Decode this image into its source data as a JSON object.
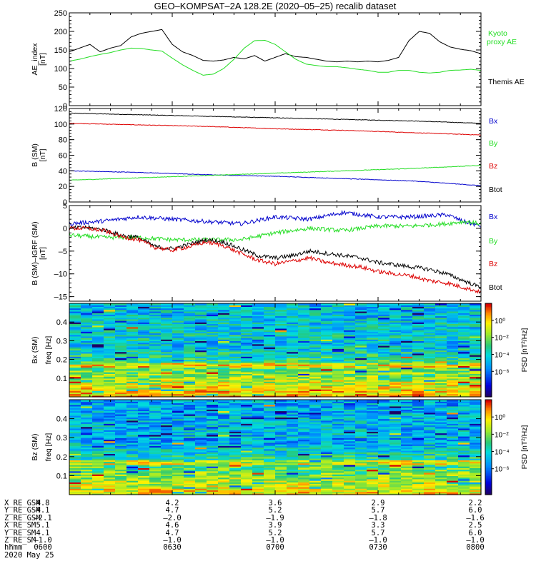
{
  "title": "GEO–KOMPSAT–2A 128.2E (2020–05–25) recalib dataset",
  "colors": {
    "black": "#000000",
    "green": "#22dd22",
    "blue": "#0000cc",
    "red": "#dd0000"
  },
  "chart_data": [
    {
      "type": "line",
      "panel": "ae",
      "ylabel": "AE_index",
      "yunit": "[nT]",
      "ylim": [
        0,
        250
      ],
      "yticks": [
        0,
        50,
        100,
        150,
        200,
        250
      ],
      "xlim": [
        0,
        120
      ],
      "legend": [
        "Kyoto",
        "proxy AE",
        "Themis AE"
      ],
      "series": [
        {
          "name": "Themis AE",
          "color": "#000000",
          "x": [
            0,
            3,
            6,
            9,
            12,
            15,
            18,
            21,
            24,
            27,
            30,
            33,
            36,
            39,
            42,
            45,
            48,
            51,
            54,
            57,
            60,
            63,
            66,
            69,
            72,
            75,
            78,
            81,
            84,
            87,
            90,
            93,
            96,
            99,
            102,
            105,
            108,
            111,
            114,
            117,
            120
          ],
          "y": [
            145,
            155,
            165,
            145,
            155,
            162,
            185,
            195,
            200,
            205,
            165,
            145,
            135,
            122,
            120,
            123,
            130,
            126,
            135,
            120,
            130,
            140,
            132,
            130,
            125,
            120,
            118,
            120,
            118,
            120,
            118,
            122,
            130,
            175,
            200,
            195,
            172,
            158,
            152,
            148,
            140
          ]
        },
        {
          "name": "Kyoto proxy AE",
          "color": "#22dd22",
          "x": [
            0,
            3,
            6,
            9,
            12,
            15,
            18,
            21,
            24,
            27,
            30,
            33,
            36,
            39,
            42,
            45,
            48,
            51,
            54,
            57,
            60,
            63,
            66,
            69,
            72,
            75,
            78,
            81,
            84,
            87,
            90,
            93,
            96,
            99,
            102,
            105,
            108,
            111,
            114,
            117,
            120
          ],
          "y": [
            120,
            125,
            132,
            138,
            143,
            150,
            155,
            154,
            150,
            147,
            128,
            110,
            95,
            82,
            85,
            100,
            125,
            155,
            175,
            176,
            165,
            145,
            125,
            112,
            108,
            105,
            105,
            102,
            98,
            95,
            90,
            90,
            95,
            95,
            90,
            88,
            90,
            95,
            96,
            98,
            95
          ]
        }
      ]
    },
    {
      "type": "line",
      "panel": "b_sm",
      "ylabel": "B (SM)",
      "yunit": "[nT]",
      "ylim": [
        0,
        120
      ],
      "yticks": [
        0,
        20,
        40,
        60,
        80,
        100,
        120
      ],
      "xlim": [
        0,
        120
      ],
      "legend": [
        "Bx",
        "By",
        "Bz",
        "Btot"
      ],
      "series": [
        {
          "name": "Btot",
          "color": "#000000",
          "x": [
            0,
            20,
            40,
            60,
            80,
            100,
            120
          ],
          "y": [
            114,
            112,
            110,
            108,
            106,
            104,
            101
          ]
        },
        {
          "name": "Bz",
          "color": "#dd0000",
          "x": [
            0,
            20,
            40,
            60,
            80,
            100,
            120
          ],
          "y": [
            101,
            99,
            97,
            94,
            92,
            89,
            86
          ]
        },
        {
          "name": "Bx",
          "color": "#0000cc",
          "x": [
            0,
            20,
            40,
            60,
            80,
            100,
            120
          ],
          "y": [
            40,
            38,
            35,
            33,
            30,
            27,
            21
          ]
        },
        {
          "name": "By",
          "color": "#22dd22",
          "x": [
            0,
            20,
            40,
            60,
            80,
            100,
            120
          ],
          "y": [
            28,
            31,
            34,
            37,
            40,
            43,
            47
          ]
        }
      ]
    },
    {
      "type": "line",
      "panel": "b_igrf",
      "ylabel": "B (SM)–IGRF (SM)",
      "yunit": "[nT]",
      "ylim": [
        -16,
        5
      ],
      "yticks": [
        -15,
        -10,
        -5,
        0,
        5
      ],
      "xlim": [
        0,
        120
      ],
      "legend": [
        "Bx",
        "By",
        "Bz",
        "Btot"
      ],
      "series": [
        {
          "name": "Bx",
          "color": "#0000cc",
          "x": [
            0,
            10,
            20,
            30,
            40,
            50,
            60,
            70,
            80,
            90,
            100,
            110,
            115,
            120
          ],
          "y": [
            1.0,
            1.6,
            2.5,
            2.0,
            1.5,
            1.0,
            2.5,
            2.0,
            3.5,
            2.5,
            2.5,
            3.0,
            1.5,
            0.5
          ]
        },
        {
          "name": "By",
          "color": "#22dd22",
          "x": [
            0,
            10,
            20,
            30,
            40,
            50,
            60,
            70,
            80,
            90,
            100,
            110,
            115,
            120
          ],
          "y": [
            -1.5,
            -2.0,
            -2.0,
            -2.5,
            -2.5,
            -2.5,
            -1.0,
            0.0,
            -0.5,
            0.5,
            0.5,
            1.0,
            1.5,
            1.0
          ]
        },
        {
          "name": "Btot",
          "color": "#000000",
          "x": [
            0,
            5,
            10,
            15,
            20,
            25,
            30,
            35,
            40,
            45,
            50,
            55,
            60,
            65,
            70,
            75,
            80,
            85,
            90,
            95,
            100,
            105,
            110,
            115,
            120
          ],
          "y": [
            0,
            0.2,
            -0.3,
            -1.5,
            -2.0,
            -4.0,
            -4.5,
            -3.5,
            -2.5,
            -3.0,
            -4.5,
            -6.0,
            -6.5,
            -6.0,
            -5.0,
            -5.5,
            -6.0,
            -6.5,
            -7.5,
            -8.0,
            -8.5,
            -9.0,
            -10.0,
            -11.5,
            -13.0
          ]
        },
        {
          "name": "Bz",
          "color": "#dd0000",
          "x": [
            0,
            5,
            10,
            15,
            20,
            25,
            30,
            35,
            40,
            45,
            50,
            55,
            60,
            65,
            70,
            75,
            80,
            85,
            90,
            95,
            100,
            105,
            110,
            115,
            120
          ],
          "y": [
            0,
            0.0,
            -0.5,
            -1.8,
            -2.5,
            -4.2,
            -4.8,
            -4.0,
            -3.0,
            -3.8,
            -5.5,
            -7.0,
            -7.8,
            -7.2,
            -6.5,
            -7.5,
            -8.0,
            -8.5,
            -9.5,
            -10.0,
            -10.5,
            -11.5,
            -12.0,
            -13.0,
            -14.0
          ]
        }
      ]
    },
    {
      "type": "heatmap",
      "panel": "bx_spec",
      "ylabel": "Bx (SM)",
      "ylabel2": "freq [Hz]",
      "ylim": [
        0,
        0.5
      ],
      "yticks": [
        0.1,
        0.2,
        0.3,
        0.4
      ],
      "colorbar_label": "PSD [nT²/Hz]",
      "colorbar_ticks": [
        "10⁰",
        "10⁻²",
        "10⁻⁴",
        "10⁻⁶"
      ],
      "colorbar_exponents": [
        0,
        -2,
        -4,
        -6
      ]
    },
    {
      "type": "heatmap",
      "panel": "bz_spec",
      "ylabel": "Bz (SM)",
      "ylabel2": "freq [Hz]",
      "ylim": [
        0,
        0.5
      ],
      "yticks": [
        0.1,
        0.2,
        0.3,
        0.4
      ],
      "colorbar_label": "PSD [nT²/Hz]",
      "colorbar_ticks": [
        "10⁰",
        "10⁻²",
        "10⁻⁴",
        "10⁻⁶"
      ],
      "colorbar_exponents": [
        0,
        -2,
        -4,
        -6
      ]
    }
  ],
  "ephemeris": {
    "rows": [
      {
        "label": "X_RE_GSM",
        "values": [
          "4.8",
          "4.2",
          "3.6",
          "2.9",
          "2.2"
        ]
      },
      {
        "label": "Y_RE_GSM",
        "values": [
          "4.1",
          "4.7",
          "5.2",
          "5.7",
          "6.0"
        ]
      },
      {
        "label": "Z_RE_GSM",
        "values": [
          "–2.1",
          "–2.0",
          "–1.9",
          "–1.8",
          "–1.6"
        ]
      },
      {
        "label": "X_RE_SM",
        "values": [
          "5.1",
          "4.6",
          "3.9",
          "3.3",
          "2.5"
        ]
      },
      {
        "label": "Y_RE_SM",
        "values": [
          "4.1",
          "4.7",
          "5.2",
          "5.7",
          "6.0"
        ]
      },
      {
        "label": "Z_RE_SM",
        "values": [
          "–1.0",
          "–1.0",
          "–1.0",
          "–1.0",
          "–1.0"
        ]
      },
      {
        "label": "hhmm",
        "values": [
          "0600",
          "0630",
          "0700",
          "0730",
          "0800"
        ]
      }
    ],
    "date": "2020 May 25"
  }
}
